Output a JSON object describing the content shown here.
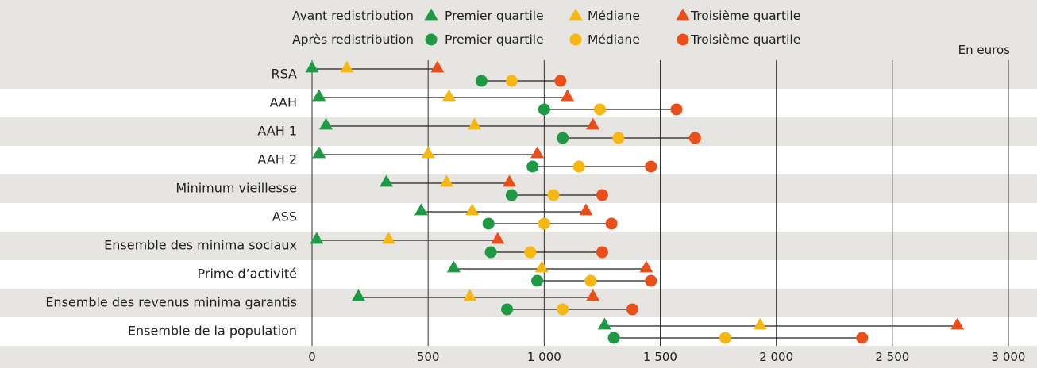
{
  "chart_data": {
    "type": "dumbbell",
    "unit_label": "En euros",
    "xlim": [
      0,
      3000
    ],
    "xticks": [
      0,
      500,
      1000,
      1500,
      2000,
      2500,
      3000
    ],
    "xtick_labels": [
      "0",
      "500",
      "1 000",
      "1 500",
      "2 000",
      "2 500",
      "3 000"
    ],
    "legend": {
      "groups": [
        {
          "key": "avant",
          "label": "Avant redistribution",
          "marker": "triangle"
        },
        {
          "key": "apres",
          "label": "Après redistribution",
          "marker": "circle"
        }
      ],
      "stats": [
        {
          "key": "q1",
          "label": "Premier quartile",
          "color": "#1e9a45"
        },
        {
          "key": "med",
          "label": "Médiane",
          "color": "#f7b712"
        },
        {
          "key": "q3",
          "label": "Troisième quartile",
          "color": "#e94e1b"
        }
      ]
    },
    "categories": [
      "RSA",
      "AAH",
      "AAH 1",
      "AAH 2",
      "Minimum vieillesse",
      "ASS",
      "Ensemble des minima sociaux",
      "Prime d’activité",
      "Ensemble des revenus minima garantis",
      "Ensemble de la population"
    ],
    "series": [
      {
        "name": "Avant redistribution",
        "q1": [
          0,
          30,
          60,
          30,
          320,
          470,
          20,
          610,
          200,
          1260
        ],
        "median": [
          150,
          590,
          700,
          500,
          580,
          690,
          330,
          990,
          680,
          1930
        ],
        "q3": [
          540,
          1100,
          1210,
          970,
          850,
          1180,
          800,
          1440,
          1210,
          2780
        ]
      },
      {
        "name": "Après redistribution",
        "q1": [
          730,
          1000,
          1080,
          950,
          860,
          760,
          770,
          970,
          840,
          1300
        ],
        "median": [
          860,
          1240,
          1320,
          1150,
          1040,
          1000,
          940,
          1200,
          1080,
          1780
        ],
        "q3": [
          1070,
          1570,
          1650,
          1460,
          1250,
          1290,
          1250,
          1460,
          1380,
          2370
        ]
      }
    ]
  }
}
